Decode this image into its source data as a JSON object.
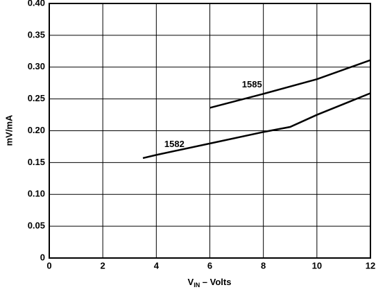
{
  "chart_data": {
    "type": "line",
    "ylabel": "mV/mA",
    "xlabel": [
      "V",
      "IN",
      " – Volts"
    ],
    "xlim": [
      0,
      12
    ],
    "xticks": [
      0,
      2,
      4,
      6,
      8,
      10,
      12
    ],
    "ylim": [
      0,
      0.4
    ],
    "yticks": [
      0,
      0.05,
      {
        "value": 0.1,
        "label": "0.10"
      },
      0.15,
      {
        "value": 0.2,
        "label": "0.20"
      },
      0.25,
      {
        "value": 0.3,
        "label": "0.30"
      },
      0.35,
      {
        "value": 0.4,
        "label": "0.40"
      }
    ],
    "grid": true,
    "series": [
      {
        "name": "1582",
        "color": "#000000",
        "x": [
          3.5,
          4,
          6,
          8,
          9,
          10,
          12
        ],
        "values": [
          0.157,
          0.162,
          0.18,
          0.198,
          0.206,
          0.225,
          0.259
        ]
      },
      {
        "name": "1585",
        "color": "#000000",
        "x": [
          6,
          8,
          10,
          12
        ],
        "values": [
          0.236,
          0.258,
          0.281,
          0.311
        ]
      }
    ]
  }
}
